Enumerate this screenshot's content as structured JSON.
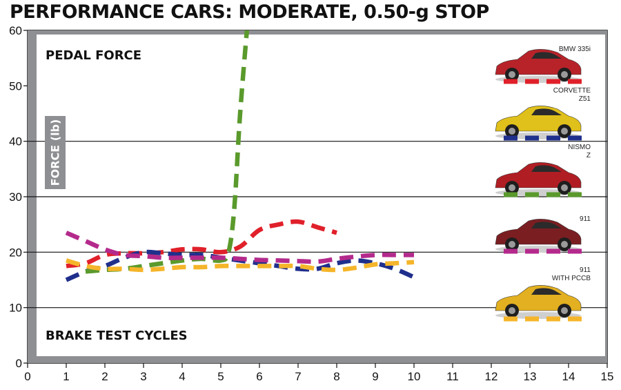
{
  "chart_data": {
    "type": "line",
    "title": "PERFORMANCE CARS: MODERATE, 0.50-g STOP",
    "inner_label_top": "PEDAL FORCE",
    "inner_label_bottom": "BRAKE TEST CYCLES",
    "ylabel": "FORCE (lb)",
    "xlabel": "BRAKE TEST CYCLES",
    "xlim": [
      0,
      15
    ],
    "ylim": [
      0,
      60
    ],
    "x_ticks": [
      0,
      1,
      2,
      3,
      4,
      5,
      6,
      7,
      8,
      9,
      10,
      11,
      12,
      13,
      14,
      15
    ],
    "y_ticks": [
      0,
      10,
      20,
      30,
      40,
      50,
      60
    ],
    "grid_y": [
      10,
      20,
      30,
      40
    ],
    "legend_position": "right",
    "series": [
      {
        "name": "BMW 335i",
        "color": "#e0202a",
        "x": [
          1,
          1.5,
          2,
          2.5,
          3,
          3.5,
          4,
          4.5,
          5,
          5.5,
          6,
          6.5,
          7,
          7.5,
          8
        ],
        "y": [
          17.5,
          18,
          19.5,
          19.8,
          19.8,
          20,
          20.5,
          20.5,
          20,
          21,
          24,
          25,
          25.5,
          24.5,
          23.5
        ]
      },
      {
        "name": "CORVETTE Z51",
        "color": "#1f2f8c",
        "x": [
          1,
          1.5,
          2,
          2.5,
          3,
          3.5,
          4,
          4.5,
          5,
          5.5,
          6,
          6.5,
          7,
          7.5,
          8,
          8.5,
          9,
          9.5,
          10
        ],
        "y": [
          15,
          16.5,
          17.5,
          19,
          20,
          19.8,
          19.5,
          19.5,
          19,
          18.5,
          18,
          17.5,
          17,
          17,
          18,
          18.5,
          18,
          17,
          15.5
        ]
      },
      {
        "name": "NISMO Z",
        "color": "#5a9a2c",
        "x": [
          1.5,
          2,
          2.5,
          3,
          3.5,
          4,
          4.5,
          5,
          5.2,
          5.35,
          5.5,
          5.7
        ],
        "y": [
          16.5,
          16.8,
          17,
          17.5,
          18,
          18.5,
          18.8,
          18.5,
          20,
          28,
          45,
          62
        ]
      },
      {
        "name": "911",
        "color": "#b42a8c",
        "x": [
          1,
          1.5,
          2,
          2.5,
          3,
          3.5,
          4,
          4.5,
          5,
          5.5,
          6,
          6.5,
          7,
          7.5,
          8,
          8.5,
          9,
          9.5,
          10
        ],
        "y": [
          23.5,
          22,
          20.5,
          19.5,
          19.3,
          19,
          19,
          19,
          19,
          18.8,
          18.6,
          18.5,
          18.4,
          18.3,
          18.8,
          19.2,
          19.5,
          19.5,
          19.5
        ]
      },
      {
        "name": "911 WITH PCCB",
        "color": "#f5b52a",
        "x": [
          1,
          1.5,
          2,
          2.5,
          3,
          3.5,
          4,
          4.5,
          5,
          5.5,
          6,
          6.5,
          7,
          7.5,
          8,
          8.5,
          9,
          9.5,
          10
        ],
        "y": [
          18.5,
          17.5,
          17,
          17,
          16.8,
          17,
          17.3,
          17.3,
          17.5,
          17.5,
          17.5,
          17.5,
          17.5,
          17,
          16.8,
          17.2,
          17.8,
          18,
          18.2
        ]
      }
    ],
    "legend": [
      {
        "line1": "BMW 335i",
        "line2": "",
        "color": "#e0202a",
        "car_color": "#b8232a"
      },
      {
        "line1": "CORVETTE",
        "line2": "Z51",
        "color": "#1f2f8c",
        "car_color": "#e0c01a"
      },
      {
        "line1": "NISMO",
        "line2": "Z",
        "color": "#5a9a2c",
        "car_color": "#b01e24"
      },
      {
        "line1": "911",
        "line2": "",
        "color": "#b42a8c",
        "car_color": "#7a1e22"
      },
      {
        "line1": "911",
        "line2": "WITH PCCB",
        "color": "#f5b52a",
        "car_color": "#e2b020"
      }
    ]
  }
}
